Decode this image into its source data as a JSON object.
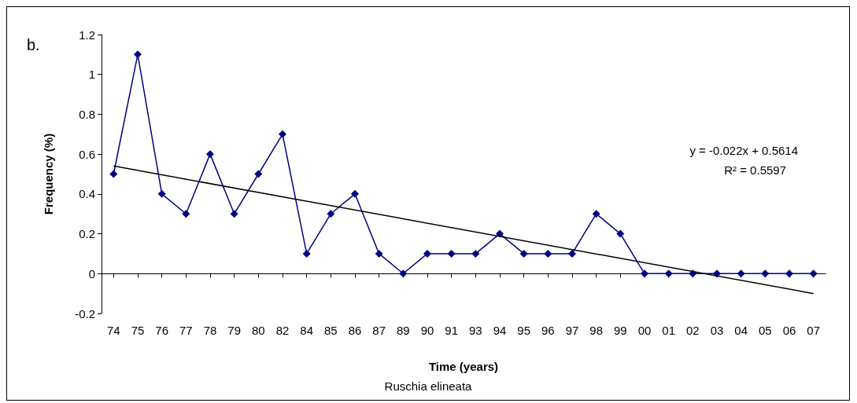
{
  "chart_data": {
    "type": "line",
    "xlabel": "Time (years)",
    "ylabel": "Frequency (%)",
    "categories": [
      "74",
      "75",
      "76",
      "77",
      "78",
      "79",
      "80",
      "82",
      "84",
      "85",
      "86",
      "87",
      "89",
      "90",
      "91",
      "93",
      "94",
      "95",
      "96",
      "97",
      "98",
      "99",
      "00",
      "01",
      "02",
      "03",
      "04",
      "05",
      "06",
      "07"
    ],
    "series": [
      {
        "color": "#000080",
        "marker": "diamond",
        "values": [
          0.5,
          1.1,
          0.4,
          0.3,
          0.6,
          0.3,
          0.5,
          0.7,
          0.1,
          0.3,
          0.4,
          0.1,
          0,
          0.1,
          0.1,
          0.1,
          0.2,
          0.1,
          0.1,
          0.1,
          0.3,
          0.2,
          0,
          0,
          0,
          0,
          0,
          0,
          0,
          0
        ]
      },
      {
        "type": "line",
        "color": "#000000",
        "marker": "none",
        "values": [
          0.54,
          null,
          null,
          null,
          null,
          null,
          null,
          null,
          null,
          null,
          null,
          null,
          null,
          null,
          null,
          null,
          null,
          null,
          null,
          null,
          null,
          null,
          null,
          null,
          null,
          null,
          null,
          null,
          null,
          -0.1
        ]
      }
    ],
    "ylim": [
      -0.2,
      1.2
    ],
    "yticks": [
      -0.2,
      0,
      0.2,
      0.4,
      0.6,
      0.8,
      1,
      1.2
    ],
    "annotations": [
      "b.",
      "y = -0.022x + 0.5614",
      "R² = 0.5597",
      "Ruschia elineata"
    ]
  }
}
